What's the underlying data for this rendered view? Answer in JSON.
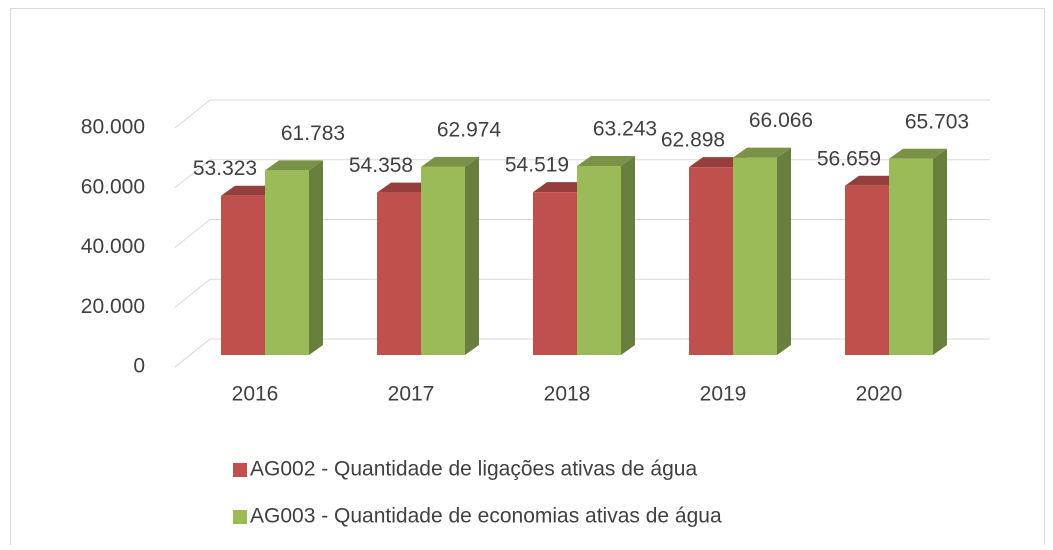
{
  "chart_data": {
    "type": "bar3d",
    "categories": [
      "2016",
      "2017",
      "2018",
      "2019",
      "2020"
    ],
    "series": [
      {
        "name": "AG002 - Quantidade de ligações ativas de água",
        "color": "#c0504d",
        "values": [
          53323,
          54358,
          54519,
          62898,
          56659
        ],
        "value_labels": [
          "53.323",
          "54.358",
          "54.519",
          "62.898",
          "56.659"
        ]
      },
      {
        "name": "AG003 - Quantidade de economias ativas de água",
        "color": "#9bbb59",
        "values": [
          61783,
          62974,
          63243,
          66066,
          65703
        ],
        "value_labels": [
          "61.783",
          "62.974",
          "63.243",
          "66.066",
          "65.703"
        ]
      }
    ],
    "ylim": [
      0,
      80000
    ],
    "yticks": [
      0,
      {
        "value": 20000,
        "label": "20.000"
      },
      {
        "value": 40000,
        "label": "40.000"
      },
      {
        "value": 60000,
        "label": "60.000"
      },
      {
        "value": 80000,
        "label": "80.000"
      }
    ],
    "grid": true,
    "legend": "bottom"
  }
}
